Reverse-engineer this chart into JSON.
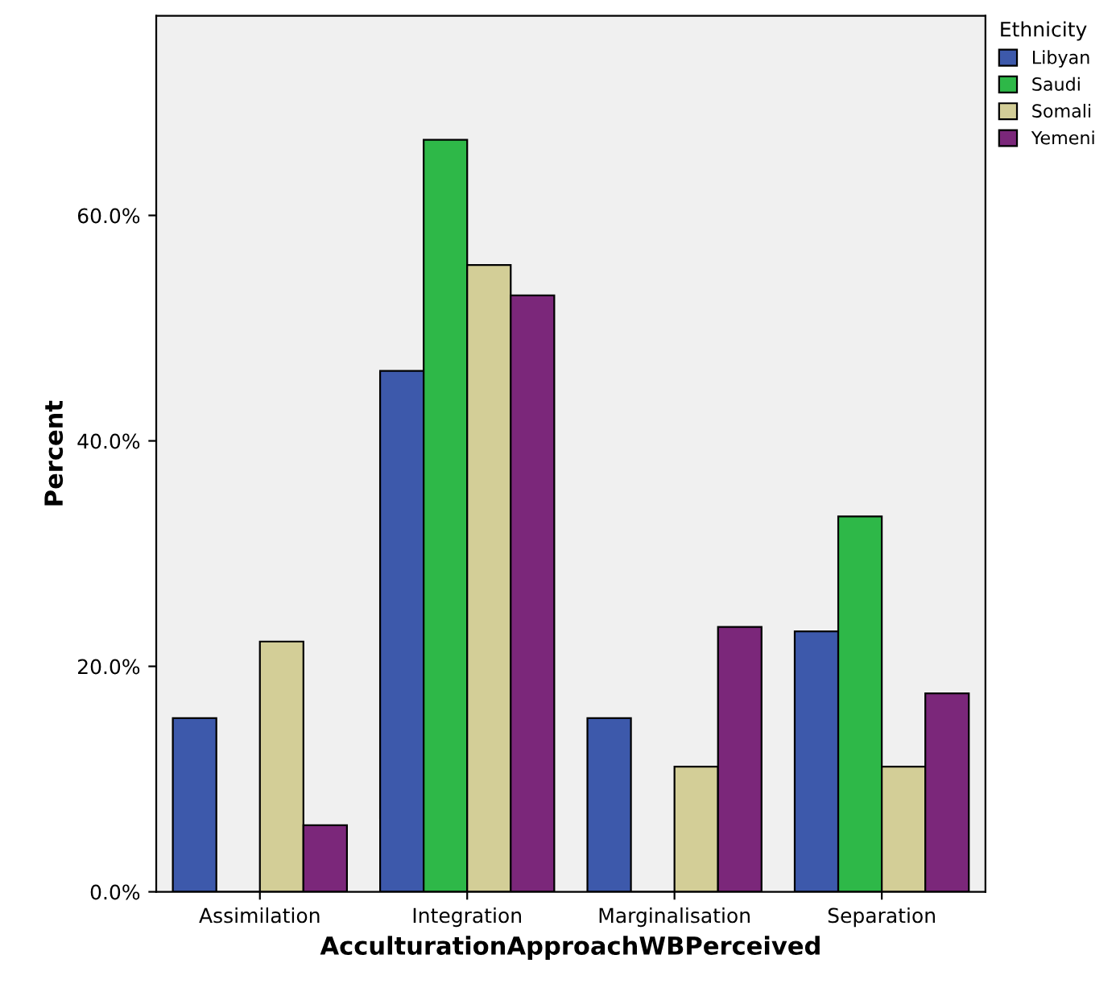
{
  "chart_data": {
    "type": "bar",
    "xlabel": "AcculturationApproachWBPerceived",
    "ylabel": "Percent",
    "legend_title": "Ethnicity",
    "legend": "top right",
    "grid": false,
    "categories": [
      "Assimilation",
      "Integration",
      "Marginalisation",
      "Separation"
    ],
    "series": [
      {
        "name": "Libyan",
        "color": "#3d59ab",
        "values": [
          15.4,
          46.2,
          15.4,
          23.1
        ]
      },
      {
        "name": "Saudi",
        "color": "#2eb848",
        "values": [
          0,
          66.7,
          0,
          33.3
        ]
      },
      {
        "name": "Somali",
        "color": "#d3ce97",
        "values": [
          22.2,
          55.6,
          11.1,
          11.1
        ]
      },
      {
        "name": "Yemeni",
        "color": "#7b277a",
        "values": [
          5.9,
          52.9,
          23.5,
          17.6
        ]
      }
    ],
    "ylim": [
      0,
      77.7
    ],
    "yticks": [
      {
        "value": 0,
        "label": "0.0%"
      },
      {
        "value": 20,
        "label": "20.0%"
      },
      {
        "value": 40,
        "label": "40.0%"
      },
      {
        "value": 60,
        "label": "60.0%"
      }
    ]
  }
}
